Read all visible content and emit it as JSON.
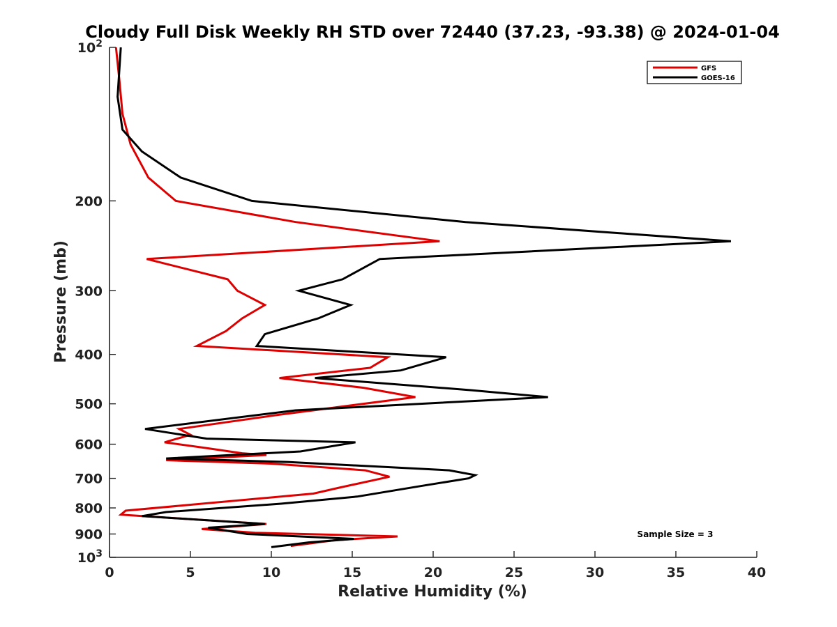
{
  "chart_data": {
    "type": "line",
    "title": "Cloudy Full Disk Weekly RH STD over 72440 (37.23, -93.38) @ 2024-01-04",
    "xlabel": "Relative Humidity (%)",
    "ylabel": "Pressure (mb)",
    "xlim": [
      0,
      40
    ],
    "ylim": [
      1000,
      100
    ],
    "yscale": "log",
    "y_reversed": true,
    "x_ticks": [
      "0",
      "5",
      "10",
      "15",
      "20",
      "25",
      "30",
      "35",
      "40"
    ],
    "y_ticks": [
      {
        "value": 100,
        "base": "10",
        "exp": "2"
      },
      {
        "value": 200,
        "label": "200"
      },
      {
        "value": 300,
        "label": "300"
      },
      {
        "value": 400,
        "label": "400"
      },
      {
        "value": 500,
        "label": "500"
      },
      {
        "value": 600,
        "label": "600"
      },
      {
        "value": 700,
        "label": "700"
      },
      {
        "value": 800,
        "label": "800"
      },
      {
        "value": 900,
        "label": "900"
      },
      {
        "value": 1000,
        "base": "10",
        "exp": "3"
      }
    ],
    "grid": false,
    "legend_position": "top-right",
    "series": [
      {
        "name": "GFS",
        "color": "#dd0000",
        "points": [
          [
            0.4,
            100
          ],
          [
            0.6,
            115
          ],
          [
            0.8,
            135
          ],
          [
            1.3,
            155
          ],
          [
            2.4,
            180
          ],
          [
            4.1,
            200
          ],
          [
            11.5,
            220
          ],
          [
            20.4,
            240
          ],
          [
            2.3,
            260
          ],
          [
            7.3,
            285
          ],
          [
            7.9,
            300
          ],
          [
            9.6,
            320
          ],
          [
            8.2,
            340
          ],
          [
            7.2,
            360
          ],
          [
            5.4,
            385
          ],
          [
            17.2,
            405
          ],
          [
            16.1,
            425
          ],
          [
            10.5,
            445
          ],
          [
            15.7,
            465
          ],
          [
            18.9,
            485
          ],
          [
            10.5,
            525
          ],
          [
            4.3,
            560
          ],
          [
            5.0,
            575
          ],
          [
            3.4,
            595
          ],
          [
            5.9,
            610
          ],
          [
            8.2,
            625
          ],
          [
            9.7,
            630
          ],
          [
            3.5,
            645
          ],
          [
            10.0,
            655
          ],
          [
            15.8,
            675
          ],
          [
            17.3,
            695
          ],
          [
            14.2,
            730
          ],
          [
            12.6,
            750
          ],
          [
            1.0,
            810
          ],
          [
            0.7,
            825
          ],
          [
            9.7,
            860
          ],
          [
            5.7,
            880
          ],
          [
            9.0,
            895
          ],
          [
            17.8,
            910
          ],
          [
            14.0,
            925
          ],
          [
            11.2,
            950
          ]
        ]
      },
      {
        "name": "GOES-16",
        "color": "#000000",
        "points": [
          [
            0.7,
            100
          ],
          [
            0.5,
            125
          ],
          [
            0.8,
            145
          ],
          [
            2.0,
            160
          ],
          [
            4.4,
            180
          ],
          [
            8.8,
            200
          ],
          [
            22.0,
            220
          ],
          [
            38.4,
            240
          ],
          [
            16.7,
            260
          ],
          [
            14.4,
            285
          ],
          [
            11.7,
            300
          ],
          [
            14.9,
            320
          ],
          [
            12.9,
            340
          ],
          [
            9.6,
            365
          ],
          [
            9.1,
            385
          ],
          [
            20.8,
            405
          ],
          [
            18.0,
            430
          ],
          [
            12.7,
            445
          ],
          [
            22.3,
            470
          ],
          [
            27.1,
            485
          ],
          [
            11.5,
            515
          ],
          [
            2.2,
            560
          ],
          [
            6.0,
            585
          ],
          [
            15.2,
            595
          ],
          [
            11.8,
            620
          ],
          [
            3.5,
            640
          ],
          [
            11.0,
            650
          ],
          [
            21.0,
            675
          ],
          [
            22.6,
            690
          ],
          [
            22.2,
            700
          ],
          [
            19.2,
            725
          ],
          [
            15.3,
            760
          ],
          [
            10.6,
            785
          ],
          [
            3.5,
            815
          ],
          [
            2.0,
            830
          ],
          [
            9.6,
            860
          ],
          [
            6.1,
            875
          ],
          [
            8.5,
            900
          ],
          [
            15.1,
            920
          ],
          [
            12.3,
            935
          ],
          [
            10.0,
            955
          ]
        ]
      }
    ],
    "annotation": "Sample Size = 3"
  }
}
